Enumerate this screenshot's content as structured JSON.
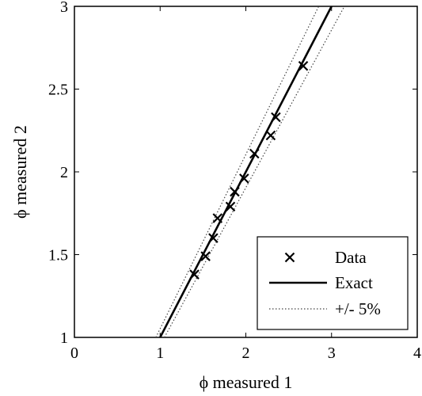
{
  "chart_data": {
    "type": "scatter",
    "xlabel": "ϕ measured 1",
    "ylabel": "ϕ measured 2",
    "xlim": [
      0,
      4
    ],
    "ylim": [
      1,
      3
    ],
    "xticks": [
      0,
      1,
      2,
      3,
      4
    ],
    "yticks": [
      1,
      1.5,
      2,
      2.5,
      3
    ],
    "xtick_labels": [
      "0",
      "1",
      "2",
      "3",
      "4"
    ],
    "ytick_labels": [
      "1",
      "1.5",
      "2",
      "2.5",
      "3"
    ],
    "grid": false,
    "legend_position": "bottom-right",
    "series": [
      {
        "name": "Data",
        "kind": "markers",
        "marker": "x",
        "points": [
          {
            "x": 1.4,
            "y": 1.38
          },
          {
            "x": 1.53,
            "y": 1.49
          },
          {
            "x": 1.62,
            "y": 1.6
          },
          {
            "x": 1.67,
            "y": 1.72
          },
          {
            "x": 1.82,
            "y": 1.79
          },
          {
            "x": 1.87,
            "y": 1.88
          },
          {
            "x": 1.98,
            "y": 1.96
          },
          {
            "x": 2.1,
            "y": 2.11
          },
          {
            "x": 2.29,
            "y": 2.22
          },
          {
            "x": 2.35,
            "y": 2.33
          },
          {
            "x": 2.67,
            "y": 2.64
          }
        ]
      },
      {
        "name": "Exact",
        "kind": "line",
        "style": "solid",
        "points": [
          {
            "x": 1.0,
            "y": 1.0
          },
          {
            "x": 3.0,
            "y": 3.0
          }
        ]
      },
      {
        "name": "+/- 5%",
        "kind": "line",
        "style": "dotted",
        "bands": [
          [
            {
              "x": 0.95,
              "y": 1.0
            },
            {
              "x": 2.85,
              "y": 3.0
            }
          ],
          [
            {
              "x": 1.05,
              "y": 1.0
            },
            {
              "x": 3.15,
              "y": 3.0
            }
          ]
        ]
      }
    ]
  }
}
